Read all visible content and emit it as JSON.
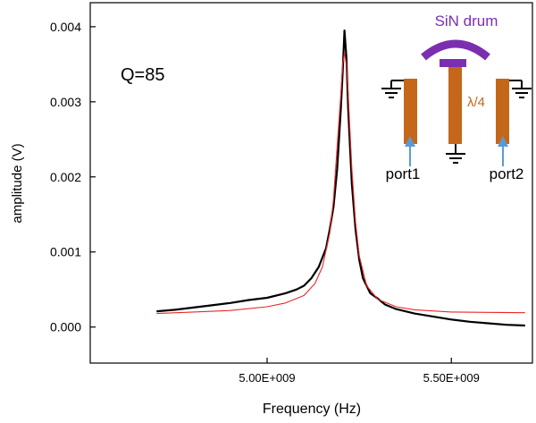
{
  "chart_data": {
    "type": "line",
    "title": "",
    "xlabel": "Frequency (Hz)",
    "ylabel": "amplitude (V)",
    "xlim": [
      4520000000.0,
      5720000000.0
    ],
    "ylim": [
      -0.00048,
      0.00432
    ],
    "x_ticks": [
      {
        "value": 5000000000.0,
        "label": "5.00E+009"
      },
      {
        "value": 5500000000.0,
        "label": "5.50E+009"
      }
    ],
    "y_ticks": [
      {
        "value": 0.0,
        "label": "0.000"
      },
      {
        "value": 0.001,
        "label": "0.001"
      },
      {
        "value": 0.002,
        "label": "0.002"
      },
      {
        "value": 0.003,
        "label": "0.003"
      },
      {
        "value": 0.004,
        "label": "0.004"
      }
    ],
    "grid": false,
    "annotations": {
      "q_label": "Q=85",
      "drum_label": "SiN drum",
      "wavelength_label": "λ/4",
      "port1_label": "port1",
      "port2_label": "port2"
    },
    "series": [
      {
        "color": "#000000",
        "x": [
          4700000000.0,
          4750000000.0,
          4800000000.0,
          4850000000.0,
          4900000000.0,
          4950000000.0,
          5000000000.0,
          5050000000.0,
          5080000000.0,
          5100000000.0,
          5120000000.0,
          5140000000.0,
          5160000000.0,
          5170000000.0,
          5180000000.0,
          5190000000.0,
          5200000000.0,
          5205000000.0,
          5210000000.0,
          5215000000.0,
          5220000000.0,
          5225000000.0,
          5230000000.0,
          5240000000.0,
          5250000000.0,
          5260000000.0,
          5280000000.0,
          5300000000.0,
          5320000000.0,
          5350000000.0,
          5400000000.0,
          5450000000.0,
          5500000000.0,
          5550000000.0,
          5600000000.0,
          5650000000.0,
          5700000000.0
        ],
        "y": [
          0.00021,
          0.00023,
          0.00026,
          0.00029,
          0.00032,
          0.00036,
          0.00039,
          0.00045,
          0.0005,
          0.00055,
          0.00065,
          0.0008,
          0.00105,
          0.0013,
          0.0016,
          0.0021,
          0.0029,
          0.0034,
          0.00395,
          0.0036,
          0.0029,
          0.0024,
          0.0019,
          0.0013,
          0.0009,
          0.00065,
          0.00045,
          0.00038,
          0.0003,
          0.00024,
          0.00018,
          0.00014,
          0.0001,
          7e-05,
          5e-05,
          3e-05,
          2e-05
        ]
      },
      {
        "color": "#e8272b",
        "x": [
          4700000000.0,
          4800000000.0,
          4900000000.0,
          5000000000.0,
          5050000000.0,
          5100000000.0,
          5130000000.0,
          5150000000.0,
          5170000000.0,
          5180000000.0,
          5190000000.0,
          5200000000.0,
          5205000000.0,
          5210000000.0,
          5215000000.0,
          5220000000.0,
          5225000000.0,
          5230000000.0,
          5240000000.0,
          5250000000.0,
          5270000000.0,
          5300000000.0,
          5350000000.0,
          5400000000.0,
          5500000000.0,
          5600000000.0,
          5700000000.0
        ],
        "y": [
          0.00018,
          0.0002,
          0.00022,
          0.00027,
          0.00032,
          0.00042,
          0.00058,
          0.0008,
          0.00125,
          0.0017,
          0.0024,
          0.0031,
          0.0035,
          0.00365,
          0.0035,
          0.0031,
          0.0026,
          0.0021,
          0.0014,
          0.00095,
          0.00055,
          0.00037,
          0.00027,
          0.00023,
          0.0002,
          0.000195,
          0.00019
        ]
      }
    ]
  }
}
